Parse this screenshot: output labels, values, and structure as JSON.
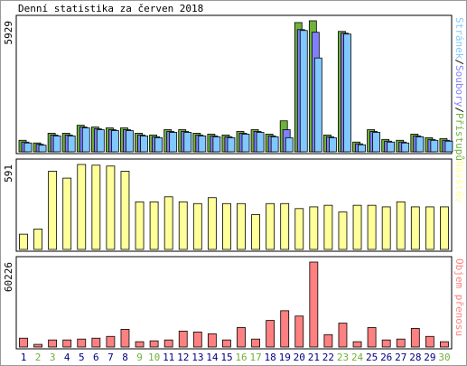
{
  "chart_data": [
    {
      "type": "bar",
      "title": "Denní statistika za červen 2018",
      "series": [
        {
          "name": "Přístupů",
          "color": "#6fb23a",
          "values": [
            521,
            401,
            841,
            841,
            1202,
            1122,
            1082,
            1082,
            841,
            761,
            1002,
            1002,
            841,
            801,
            761,
            921,
            1002,
            801,
            1402,
            5849,
            5929,
            761,
            5448,
            441,
            1002,
            561,
            521,
            801,
            641,
            601
          ]
        },
        {
          "name": "Soubory",
          "color": "#8080ff",
          "values": [
            440,
            340,
            760,
            760,
            1120,
            1040,
            1000,
            1000,
            760,
            680,
            920,
            920,
            760,
            720,
            680,
            840,
            920,
            720,
            1000,
            5529,
            5409,
            680,
            5368,
            360,
            920,
            480,
            440,
            720,
            560,
            520
          ]
        },
        {
          "name": "Stránek",
          "color": "#80c8ff",
          "values": [
            400,
            300,
            720,
            720,
            1080,
            1000,
            960,
            960,
            720,
            640,
            880,
            880,
            720,
            680,
            640,
            800,
            880,
            680,
            640,
            5489,
            4246,
            640,
            5328,
            320,
            880,
            440,
            400,
            680,
            520,
            480
          ]
        }
      ],
      "legend_separator": "/",
      "ylim": [
        0,
        5929
      ],
      "yticks": [
        5929
      ]
    },
    {
      "type": "bar",
      "series": [
        {
          "name": "Návštěv",
          "color": "#ffff99",
          "values": [
            106,
            142,
            544,
            496,
            591,
            586,
            580,
            544,
            331,
            331,
            366,
            331,
            319,
            360,
            319,
            319,
            242,
            319,
            319,
            284,
            296,
            307,
            260,
            307,
            307,
            296,
            331,
            296,
            296,
            296
          ]
        }
      ],
      "ylim": [
        0,
        591
      ],
      "yticks": [
        591
      ]
    },
    {
      "type": "bar",
      "series": [
        {
          "name": "Objem přenosu",
          "color": "#ff8080",
          "values": [
            6274,
            1882,
            5019,
            5019,
            5646,
            6274,
            7528,
            12547,
            3764,
            4392,
            5019,
            11292,
            10665,
            9410,
            5019,
            13802,
            5646,
            18821,
            25722,
            21957,
            60226,
            8783,
            16939,
            3764,
            13802,
            5019,
            5646,
            13174,
            7528,
            3764
          ]
        }
      ],
      "ylim": [
        0,
        60226
      ],
      "yticks": [
        60226
      ],
      "categories": [
        1,
        2,
        3,
        4,
        5,
        6,
        7,
        8,
        9,
        10,
        11,
        12,
        13,
        14,
        15,
        16,
        17,
        18,
        19,
        20,
        21,
        22,
        23,
        24,
        25,
        26,
        27,
        28,
        29,
        30
      ],
      "category_colors": [
        "#000080",
        "#6fb23a",
        "#6fb23a",
        "#000080",
        "#000080",
        "#000080",
        "#000080",
        "#000080",
        "#6fb23a",
        "#6fb23a",
        "#000080",
        "#000080",
        "#000080",
        "#000080",
        "#000080",
        "#6fb23a",
        "#6fb23a",
        "#000080",
        "#000080",
        "#000080",
        "#000080",
        "#000080",
        "#6fb23a",
        "#6fb23a",
        "#000080",
        "#000080",
        "#000080",
        "#000080",
        "#000080",
        "#6fb23a"
      ]
    }
  ]
}
